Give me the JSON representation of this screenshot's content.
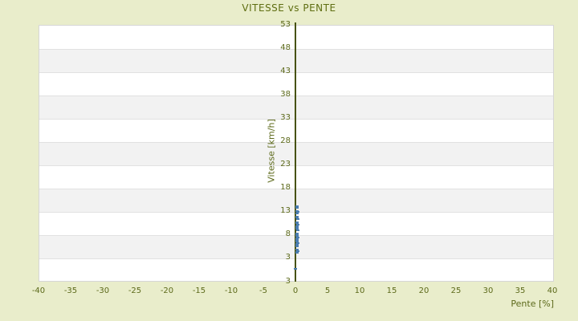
{
  "title": "VITESSE vs PENTE",
  "colors": {
    "background": "#e9edcb",
    "plot_background": "#ffffff",
    "band": "#f2f2f2",
    "gridline": "#e1e1e1",
    "axis_line": "#47520c",
    "text": "#5c691a",
    "title_text": "#5f6e12",
    "point": "#4a7cb0"
  },
  "chart_data": {
    "type": "scatter",
    "title": "VITESSE vs PENTE",
    "xlabel": "Pente [%]",
    "ylabel": "Vitesse [km/h]",
    "xlim": [
      -40,
      40
    ],
    "x_ticks": [
      -40,
      -35,
      -30,
      -25,
      -20,
      -15,
      -10,
      -5,
      0,
      5,
      10,
      15,
      20,
      25,
      30,
      35,
      40
    ],
    "y_ticks": [
      53,
      48,
      43,
      38,
      33,
      28,
      23,
      18,
      13,
      8,
      3
    ],
    "y_axis_bottom_label": "3",
    "grid": "horizontal-bands",
    "legend": "none",
    "points": [
      [
        0.3,
        14.0
      ],
      [
        0.25,
        13.8
      ],
      [
        0.3,
        13.1
      ],
      [
        0.35,
        12.8
      ],
      [
        0.25,
        12.5
      ],
      [
        0.3,
        11.9
      ],
      [
        0.3,
        11.6
      ],
      [
        0.35,
        11.3
      ],
      [
        0.25,
        10.7
      ],
      [
        0.3,
        10.4
      ],
      [
        0.35,
        10.1
      ],
      [
        0.3,
        9.8
      ],
      [
        0.25,
        9.5
      ],
      [
        0.3,
        9.2
      ],
      [
        0.35,
        8.9
      ],
      [
        0.3,
        8.3
      ],
      [
        0.25,
        8.0
      ],
      [
        0.3,
        7.7
      ],
      [
        0.35,
        7.4
      ],
      [
        0.3,
        7.1
      ],
      [
        0.25,
        6.8
      ],
      [
        0.3,
        6.5
      ],
      [
        0.35,
        6.2
      ],
      [
        0.3,
        5.9
      ],
      [
        0.25,
        5.6
      ],
      [
        0.3,
        5.4
      ],
      [
        0.3,
        4.8
      ],
      [
        0.35,
        4.5
      ],
      [
        0.25,
        4.2
      ],
      [
        0.3,
        4.0
      ],
      [
        0.05,
        0.6
      ]
    ]
  }
}
